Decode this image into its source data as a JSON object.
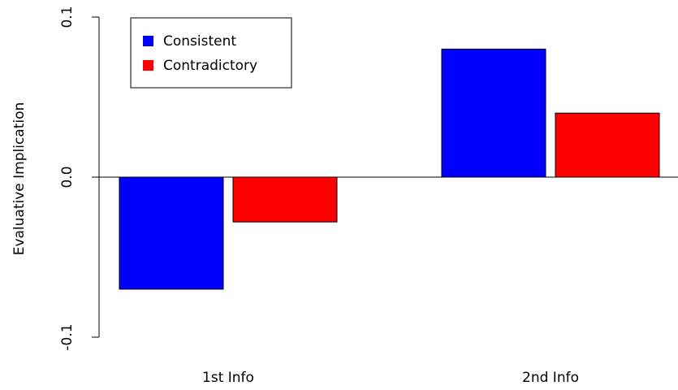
{
  "chart_data": {
    "type": "bar",
    "categories": [
      "1st Info",
      "2nd Info"
    ],
    "series": [
      {
        "name": "Consistent",
        "color": "#0000ff",
        "values": [
          -0.07,
          0.08
        ]
      },
      {
        "name": "Contradictory",
        "color": "#ff0000",
        "values": [
          -0.028,
          0.04
        ]
      }
    ],
    "ylabel": "Evaluative Implication",
    "xlabel": "",
    "ylim": [
      -0.1,
      0.1
    ],
    "yticks": [
      {
        "value": -0.1,
        "label": "-0.1"
      },
      {
        "value": 0.0,
        "label": "0.0"
      },
      {
        "value": 0.1,
        "label": "0.1"
      }
    ],
    "legend_position": "top-left",
    "grid": false,
    "zero_line": true
  }
}
